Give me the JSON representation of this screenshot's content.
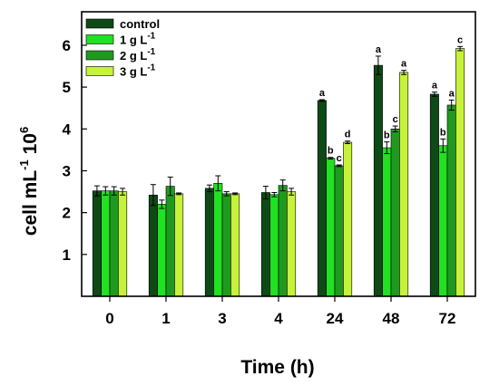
{
  "chart_data": {
    "type": "bar",
    "xlabel": "Time (h)",
    "ylabel": {
      "main": "cell mL",
      "sup1": "-1",
      "mid": " 10",
      "sup2": "6"
    },
    "categories": [
      "0",
      "1",
      "3",
      "4",
      "24",
      "48",
      "72"
    ],
    "ylim": [
      0,
      6.8
    ],
    "yticks": [
      "1",
      "2",
      "3",
      "4",
      "5",
      "6"
    ],
    "ytick_values": [
      1,
      2,
      3,
      4,
      5,
      6
    ],
    "legend_position": "top-left",
    "series": [
      {
        "name": "control",
        "legend": {
          "main": "control",
          "sup": ""
        },
        "color": "#0d4a16",
        "values": [
          2.52,
          2.42,
          2.58,
          2.48,
          4.68,
          5.52,
          4.83
        ],
        "errors": [
          0.12,
          0.25,
          0.08,
          0.15,
          0.02,
          0.22,
          0.05
        ],
        "labels": [
          "",
          "",
          "",
          "",
          "a",
          "a",
          "a"
        ]
      },
      {
        "name": "1 g L-1",
        "legend": {
          "main": "1 g L",
          "sup": "-1"
        },
        "color": "#22e022",
        "values": [
          2.52,
          2.2,
          2.7,
          2.43,
          3.3,
          3.55,
          3.6
        ],
        "errors": [
          0.1,
          0.1,
          0.18,
          0.05,
          0.02,
          0.14,
          0.16
        ],
        "labels": [
          "",
          "",
          "",
          "",
          "b",
          "b",
          "b"
        ]
      },
      {
        "name": "2 g L-1",
        "legend": {
          "main": "2 g L",
          "sup": "-1"
        },
        "color": "#1f9a1f",
        "values": [
          2.52,
          2.63,
          2.45,
          2.65,
          3.12,
          4.0,
          4.57
        ],
        "errors": [
          0.1,
          0.22,
          0.05,
          0.13,
          0.02,
          0.07,
          0.12
        ],
        "labels": [
          "",
          "",
          "",
          "",
          "c",
          "c",
          "a"
        ]
      },
      {
        "name": "3 g L-1",
        "legend": {
          "main": "3 g L",
          "sup": "-1"
        },
        "color": "#c6f23a",
        "values": [
          2.5,
          2.45,
          2.45,
          2.5,
          3.68,
          5.35,
          5.92
        ],
        "errors": [
          0.08,
          0.02,
          0.02,
          0.08,
          0.03,
          0.05,
          0.05
        ],
        "labels": [
          "",
          "",
          "",
          "",
          "d",
          "a",
          "c"
        ]
      }
    ]
  }
}
